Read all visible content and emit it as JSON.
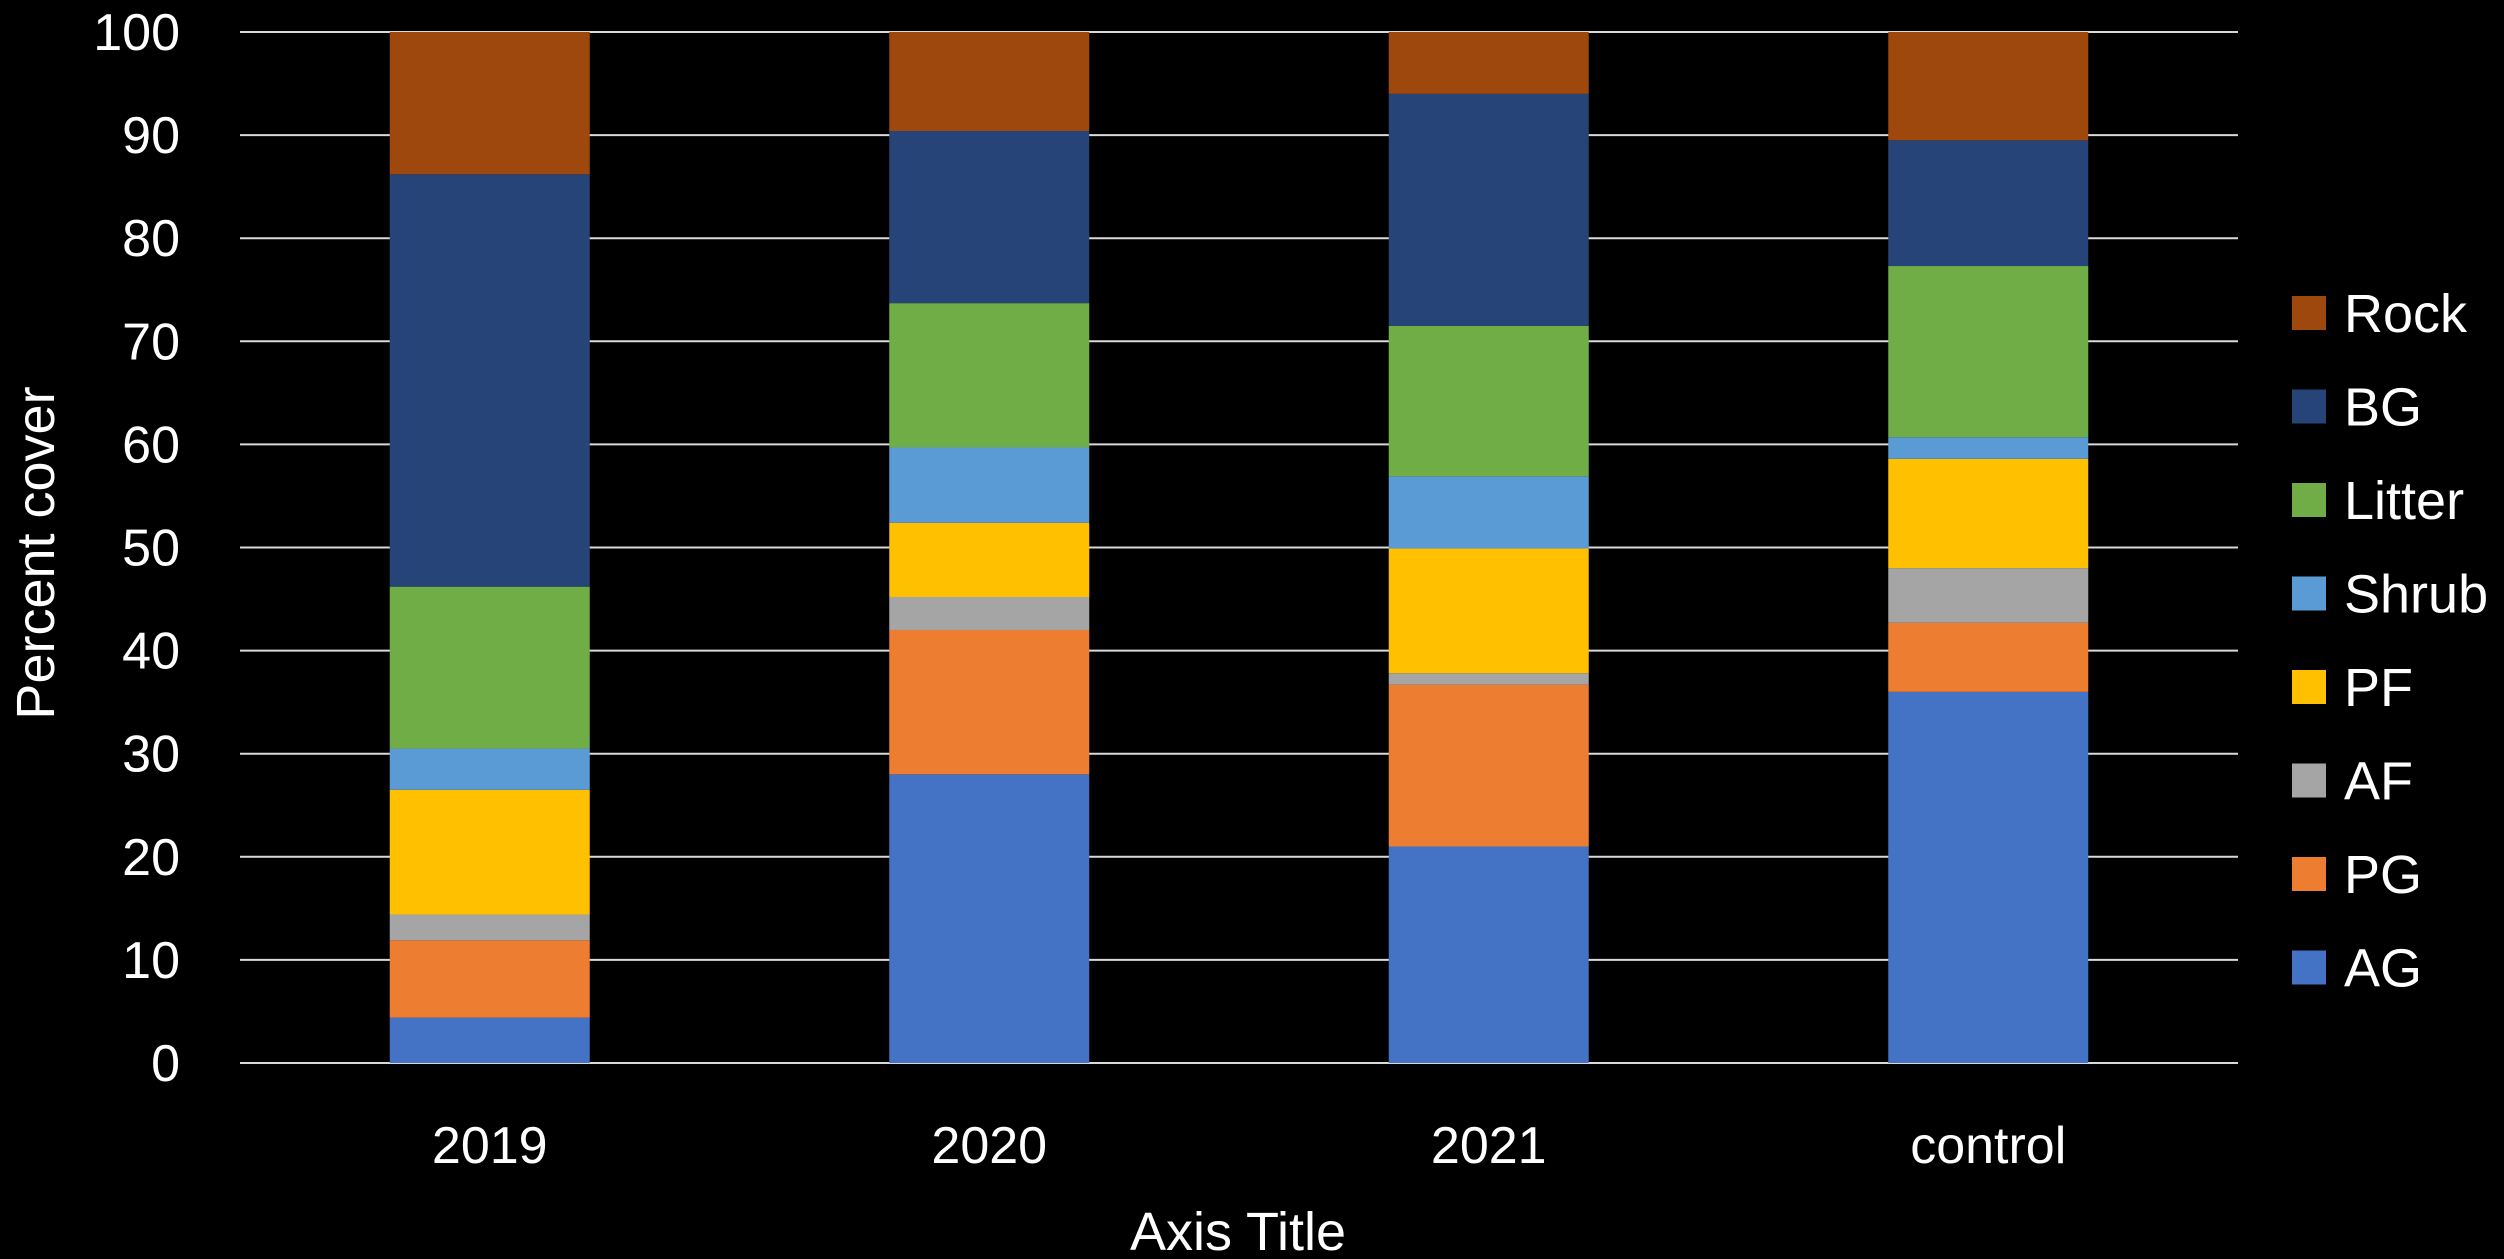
{
  "chart_data": {
    "type": "bar",
    "stacked": true,
    "categories": [
      "2019",
      "2020",
      "2021",
      "control"
    ],
    "series": [
      {
        "name": "AG",
        "color": "#4472c4",
        "values": [
          4.4,
          28.0,
          21.0,
          36.0
        ]
      },
      {
        "name": "PG",
        "color": "#ed7d31",
        "values": [
          7.5,
          14.0,
          15.7,
          6.7
        ]
      },
      {
        "name": "AF",
        "color": "#a5a5a5",
        "values": [
          2.5,
          3.2,
          1.1,
          5.3
        ]
      },
      {
        "name": "PF",
        "color": "#ffc000",
        "values": [
          12.1,
          7.2,
          12.1,
          10.6
        ]
      },
      {
        "name": "Shrub",
        "color": "#5b9bd5",
        "values": [
          4.0,
          7.3,
          7.0,
          2.1
        ]
      },
      {
        "name": "Litter",
        "color": "#70ad47",
        "values": [
          15.7,
          14.0,
          14.6,
          16.6
        ]
      },
      {
        "name": "BG",
        "color": "#264478",
        "values": [
          40.0,
          16.7,
          22.5,
          12.2
        ]
      },
      {
        "name": "Rock",
        "color": "#9e480e",
        "values": [
          13.8,
          9.6,
          6.0,
          10.5
        ]
      }
    ],
    "title": "",
    "xlabel": "Axis Title",
    "ylabel": "Percent cover",
    "ylim": [
      0,
      100
    ],
    "yticks": [
      "0",
      "10",
      "20",
      "30",
      "40",
      "50",
      "60",
      "70",
      "80",
      "90",
      "100"
    ],
    "grid": true,
    "legend_position": "right",
    "legend_order": [
      "Rock",
      "BG",
      "Litter",
      "Shrub",
      "PF",
      "AF",
      "PG",
      "AG"
    ]
  }
}
